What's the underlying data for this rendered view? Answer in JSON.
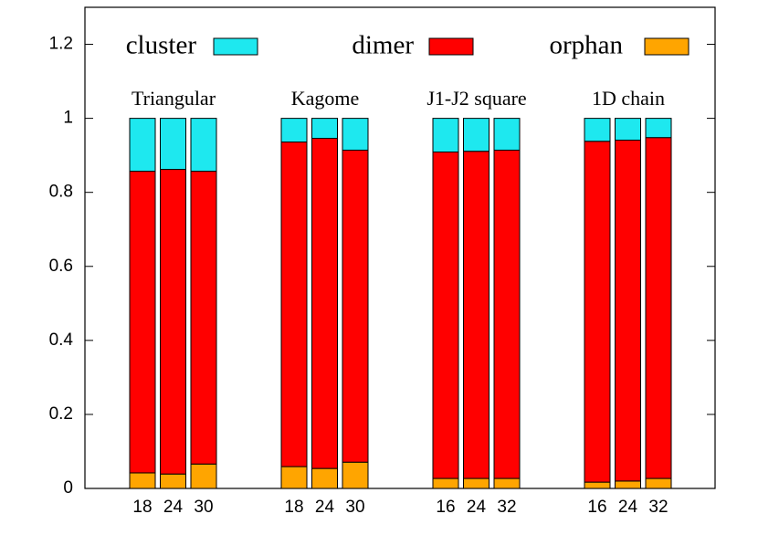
{
  "chart_data": {
    "type": "stacked-bar",
    "groups": [
      {
        "label": "Triangular",
        "categories": [
          "18",
          "24",
          "30"
        ]
      },
      {
        "label": "Kagome",
        "categories": [
          "18",
          "24",
          "30"
        ]
      },
      {
        "label": "J1-J2 square",
        "categories": [
          "16",
          "24",
          "32"
        ]
      },
      {
        "label": "1D chain",
        "categories": [
          "16",
          "24",
          "32"
        ]
      }
    ],
    "series": [
      {
        "name": "orphan",
        "color": "#ffa500",
        "values": [
          0.042,
          0.039,
          0.066,
          0.059,
          0.054,
          0.071,
          0.027,
          0.027,
          0.027,
          0.017,
          0.02,
          0.027
        ]
      },
      {
        "name": "dimer",
        "color": "#ff0000",
        "values": [
          0.815,
          0.823,
          0.791,
          0.877,
          0.892,
          0.843,
          0.882,
          0.884,
          0.887,
          0.921,
          0.921,
          0.921
        ]
      },
      {
        "name": "cluster",
        "color": "#1ee8ef",
        "values": [
          0.143,
          0.138,
          0.143,
          0.064,
          0.054,
          0.086,
          0.091,
          0.089,
          0.086,
          0.062,
          0.059,
          0.052
        ]
      }
    ],
    "legend_order": [
      "cluster",
      "dimer",
      "orphan"
    ],
    "legend": "top",
    "ylim": [
      0,
      1.3
    ],
    "yticks": [
      0,
      0.2,
      0.4,
      0.6,
      0.8,
      1,
      1.2
    ]
  }
}
